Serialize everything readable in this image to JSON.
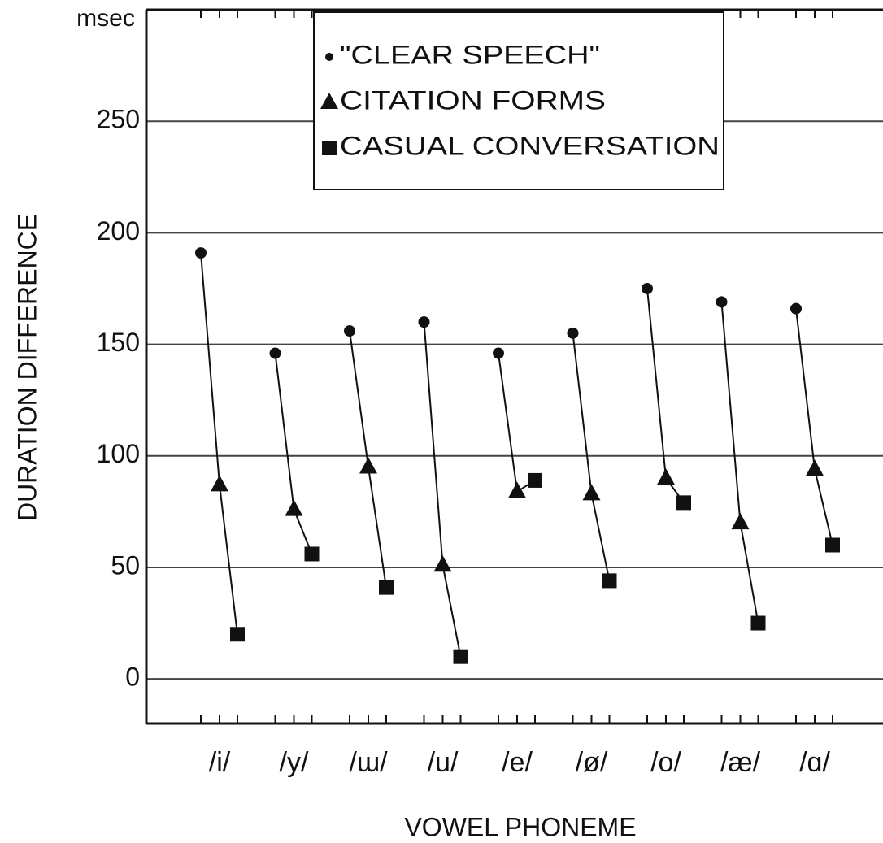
{
  "chart_data": {
    "type": "line",
    "y_unit": "msec",
    "y_label": "DURATION DIFFERENCE",
    "x_label": "VOWEL PHONEME",
    "categories": [
      "/i/",
      "/y/",
      "/ɯ/",
      "/u/",
      "/e/",
      "/ø/",
      "/o/",
      "/æ/",
      "/ɑ/"
    ],
    "series": [
      {
        "name": "\"CLEAR SPEECH\"",
        "color": "#111111",
        "marker": "circle",
        "values": [
          191,
          146,
          156,
          160,
          146,
          155,
          175,
          169,
          166
        ]
      },
      {
        "name": "CITATION FORMS",
        "color": "#111111",
        "marker": "triangle",
        "values": [
          87,
          76,
          95,
          51,
          84,
          83,
          90,
          70,
          94
        ]
      },
      {
        "name": "CASUAL CONVERSATION",
        "color": "#111111",
        "marker": "square",
        "values": [
          20,
          56,
          41,
          10,
          89,
          44,
          79,
          25,
          60
        ]
      }
    ],
    "ylim": [
      -20,
      300
    ],
    "yticks": [
      0,
      50,
      100,
      150,
      200,
      250
    ],
    "grid": true,
    "legend": "top"
  }
}
